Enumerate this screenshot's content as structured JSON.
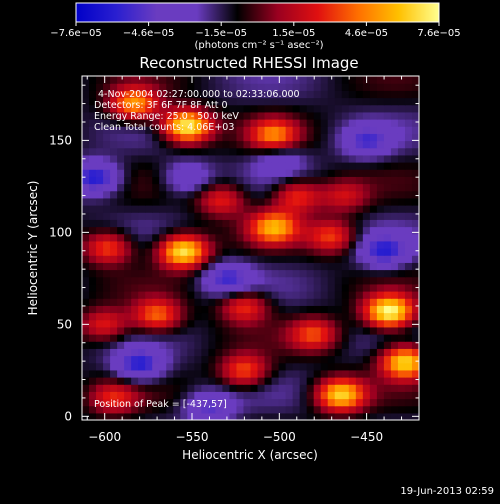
{
  "colors": {
    "background": "#000000",
    "foreground": "#ffffff",
    "colormap": [
      "#0000c8",
      "#2a1fd0",
      "#6a3cc0",
      "#6a3cc0",
      "#000000",
      "#9a0020",
      "#e01010",
      "#ff7000",
      "#ffc000",
      "#ffff90"
    ]
  },
  "colorbar": {
    "tick_labels": [
      "−7.6e−05",
      "−4.6e−05",
      "−1.5e−05",
      "1.5e−05",
      "4.6e−05",
      "7.6e−05"
    ],
    "unit_label": "(photons cm⁻² s⁻¹ asec⁻²)"
  },
  "chart_data": {
    "type": "heatmap",
    "title": "Reconstructed RHESSI Image",
    "xlabel": "Heliocentric X (arcsec)",
    "ylabel": "Heliocentric Y (arcsec)",
    "xlim": [
      -613,
      -420
    ],
    "ylim": [
      -2,
      185
    ],
    "x_ticks": [
      -600,
      -550,
      -500,
      -450
    ],
    "y_ticks": [
      0,
      50,
      100,
      150
    ],
    "value_range": [
      -7.6e-05,
      7.6e-05
    ],
    "annotations": [
      "4-Nov-2004 02:27:00.000 to 02:33:06.000",
      "Detectors: 3F 6F 7F 8F  Att 0",
      "Energy Range: 25.0 - 50.0 keV",
      "Clean     Total counts: 4.06E+03"
    ],
    "peak_label": "Position of Peak = [-437,57]",
    "peak": [
      -437,
      57
    ],
    "blobs": [
      {
        "x": -553,
        "y": 158,
        "amp": 1.0
      },
      {
        "x": -503,
        "y": 153,
        "amp": 0.6
      },
      {
        "x": -583,
        "y": 170,
        "amp": 0.7
      },
      {
        "x": -533,
        "y": 118,
        "amp": 0.45
      },
      {
        "x": -490,
        "y": 120,
        "amp": 0.5
      },
      {
        "x": -463,
        "y": 120,
        "amp": 0.35
      },
      {
        "x": -503,
        "y": 103,
        "amp": 0.7
      },
      {
        "x": -555,
        "y": 90,
        "amp": 0.95
      },
      {
        "x": -598,
        "y": 92,
        "amp": 0.55
      },
      {
        "x": -470,
        "y": 98,
        "amp": 0.5
      },
      {
        "x": -520,
        "y": 60,
        "amp": 0.5
      },
      {
        "x": -570,
        "y": 55,
        "amp": 0.6
      },
      {
        "x": -600,
        "y": 50,
        "amp": 0.45
      },
      {
        "x": -437,
        "y": 57,
        "amp": 1.0
      },
      {
        "x": -428,
        "y": 30,
        "amp": 0.9
      },
      {
        "x": -465,
        "y": 12,
        "amp": 0.85
      },
      {
        "x": -520,
        "y": 25,
        "amp": 0.55
      },
      {
        "x": -595,
        "y": 10,
        "amp": 0.4
      },
      {
        "x": -480,
        "y": 45,
        "amp": 0.5
      },
      {
        "x": -553,
        "y": 130,
        "amp": -0.35
      },
      {
        "x": -605,
        "y": 130,
        "amp": -0.6
      },
      {
        "x": -530,
        "y": 75,
        "amp": -0.45
      },
      {
        "x": -440,
        "y": 90,
        "amp": -0.5
      },
      {
        "x": -580,
        "y": 28,
        "amp": -0.55
      },
      {
        "x": -500,
        "y": 140,
        "amp": -0.3
      },
      {
        "x": -450,
        "y": 150,
        "amp": -0.4
      },
      {
        "x": -540,
        "y": 5,
        "amp": -0.4
      }
    ]
  },
  "footer": {
    "timestamp": "19-Jun-2013 02:59"
  }
}
